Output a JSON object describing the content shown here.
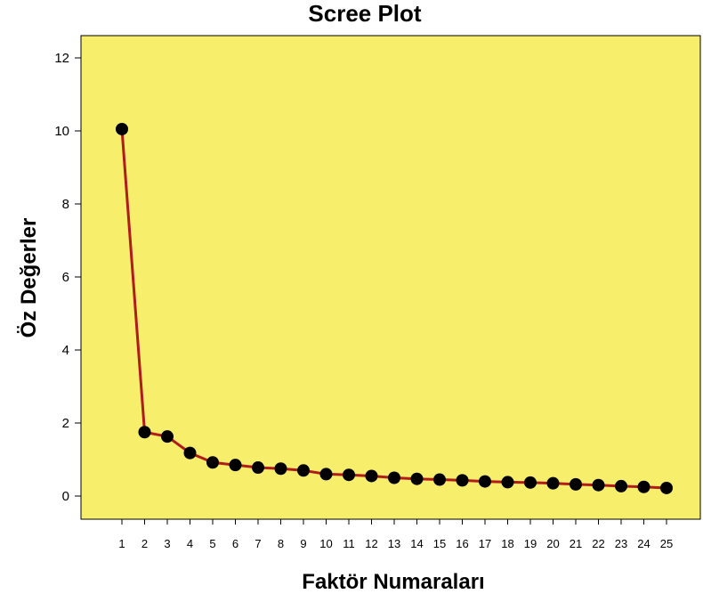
{
  "chart_data": {
    "type": "line",
    "title": "Scree Plot",
    "xlabel": "Faktör Numaraları",
    "ylabel": "Öz Değerler",
    "x": [
      1,
      2,
      3,
      4,
      5,
      6,
      7,
      8,
      9,
      10,
      11,
      12,
      13,
      14,
      15,
      16,
      17,
      18,
      19,
      20,
      21,
      22,
      23,
      24,
      25
    ],
    "series": [
      {
        "values": [
          10.05,
          1.75,
          1.63,
          1.18,
          0.92,
          0.85,
          0.78,
          0.75,
          0.7,
          0.6,
          0.58,
          0.55,
          0.5,
          0.47,
          0.45,
          0.43,
          0.4,
          0.38,
          0.37,
          0.35,
          0.32,
          0.3,
          0.27,
          0.25,
          0.22
        ]
      }
    ],
    "ylim": [
      0,
      12
    ],
    "yticks": [
      0,
      2,
      4,
      6,
      8,
      10,
      12
    ],
    "xticks": [
      "1",
      "2",
      "3",
      "4",
      "5",
      "6",
      "7",
      "8",
      "9",
      "10",
      "11",
      "12",
      "13",
      "14",
      "15",
      "16",
      "17",
      "18",
      "19",
      "20",
      "21",
      "22",
      "23",
      "24",
      "25"
    ],
    "grid": false,
    "colors": {
      "plot_background": "#f7ee6b",
      "line": "#b01c1c",
      "marker": "#000000"
    }
  }
}
